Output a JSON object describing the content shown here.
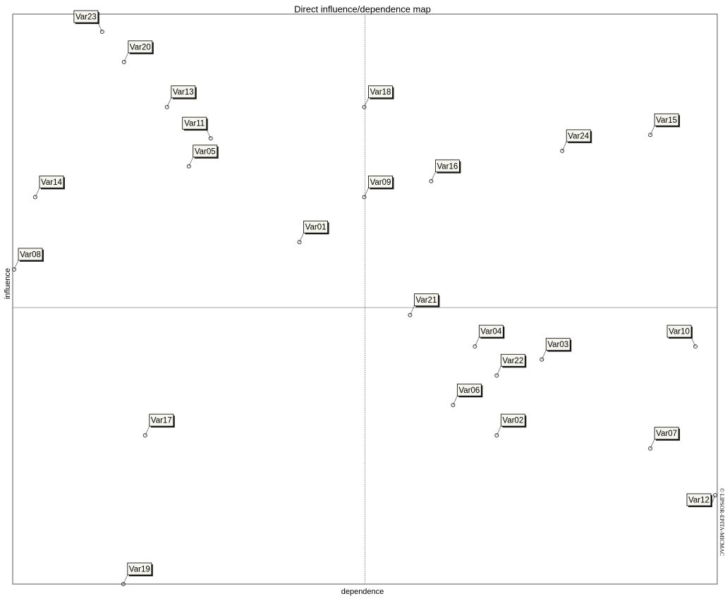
{
  "chart_data": {
    "type": "scatter",
    "title": "Direct influence/dependence map",
    "x_label": "dependence",
    "y_label": "influence",
    "side_text": "© LIPSOR-EPITA-MICMAC",
    "xlim": [
      0,
      100
    ],
    "ylim": [
      0,
      100
    ],
    "labels": [
      "Var23",
      "Var20",
      "Var13",
      "Var11",
      "Var05",
      "Var14",
      "Var18",
      "Var09",
      "Var16",
      "Var24",
      "Var15",
      "Var01",
      "Var08",
      "Var21",
      "Var04",
      "Var10",
      "Var22",
      "Var03",
      "Var06",
      "Var02",
      "Var07",
      "Var12",
      "Var17",
      "Var19"
    ],
    "x": [
      12.7,
      15.8,
      21.9,
      28.1,
      25.0,
      3.2,
      49.9,
      49.9,
      59.4,
      78.0,
      90.5,
      40.7,
      0.2,
      56.4,
      65.6,
      96.9,
      68.7,
      75.1,
      62.5,
      68.7,
      90.5,
      99.7,
      18.8,
      15.7
    ],
    "y": [
      96.9,
      91.6,
      83.7,
      78.2,
      73.3,
      67.9,
      83.7,
      67.9,
      70.7,
      76.0,
      78.8,
      60.0,
      55.2,
      47.2,
      41.7,
      41.7,
      36.6,
      39.4,
      31.4,
      26.1,
      23.8,
      15.6,
      26.1,
      0
    ],
    "color": "#333333"
  }
}
